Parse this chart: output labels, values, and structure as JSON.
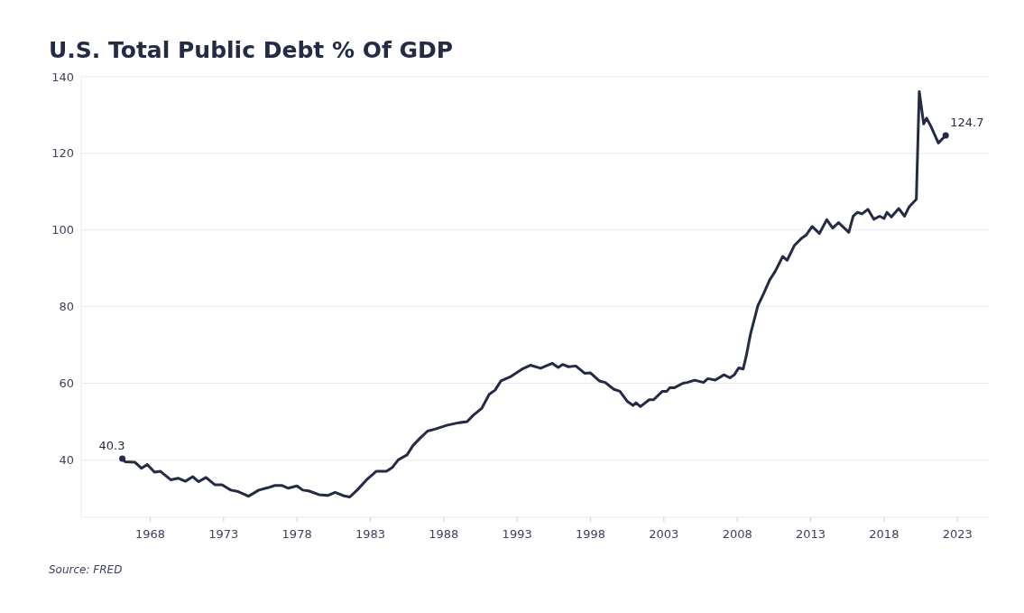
{
  "chart_data": {
    "type": "line",
    "title": "U.S. Total Public Debt % Of GDP",
    "x": [
      1966.1,
      1966.3,
      1966.95,
      1967.4,
      1967.8,
      1968.3,
      1968.7,
      1969.4,
      1969.9,
      1970.4,
      1970.9,
      1971.3,
      1971.8,
      1972.4,
      1972.9,
      1973.5,
      1974.0,
      1974.7,
      1975.4,
      1976.0,
      1976.5,
      1977.0,
      1977.4,
      1978.0,
      1978.4,
      1978.8,
      1979.5,
      1980.1,
      1980.6,
      1981.2,
      1981.6,
      1982.1,
      1982.8,
      1983.4,
      1984.1,
      1984.5,
      1984.9,
      1985.5,
      1985.9,
      1986.4,
      1986.9,
      1987.4,
      1988.2,
      1988.9,
      1989.6,
      1990.0,
      1990.6,
      1991.1,
      1991.5,
      1991.9,
      1992.6,
      1993.4,
      1993.9,
      1994.6,
      1995.4,
      1995.8,
      1996.1,
      1996.5,
      1997.0,
      1997.6,
      1998.0,
      1998.6,
      1999.0,
      1999.6,
      2000.0,
      2000.5,
      2000.9,
      2001.1,
      2001.4,
      2002.0,
      2002.3,
      2002.9,
      2003.2,
      2003.4,
      2003.7,
      2004.3,
      2004.6,
      2005.1,
      2005.7,
      2006.0,
      2006.5,
      2007.1,
      2007.5,
      2007.8,
      2008.1,
      2008.4,
      2008.6,
      2008.9,
      2009.4,
      2009.8,
      2010.2,
      2010.6,
      2011.1,
      2011.4,
      2011.9,
      2012.4,
      2012.7,
      2013.1,
      2013.6,
      2014.1,
      2014.5,
      2014.9,
      2015.6,
      2015.9,
      2016.2,
      2016.5,
      2016.9,
      2017.3,
      2017.7,
      2018.0,
      2018.2,
      2018.5,
      2019.0,
      2019.4,
      2019.7,
      2020.2,
      2020.4,
      2020.7,
      2020.9,
      2021.2,
      2021.7,
      2022.2
    ],
    "series": [
      {
        "color": "#232b45",
        "values": [
          40.3,
          39.5,
          39.4,
          37.8,
          38.8,
          36.8,
          37.0,
          34.8,
          35.2,
          34.4,
          35.6,
          34.3,
          35.4,
          33.5,
          33.5,
          32.1,
          31.7,
          30.5,
          32.1,
          32.7,
          33.3,
          33.3,
          32.6,
          33.2,
          32.1,
          31.9,
          30.9,
          30.7,
          31.5,
          30.6,
          30.3,
          32.1,
          35.0,
          37.0,
          37.0,
          38.0,
          40.0,
          41.3,
          43.7,
          45.7,
          47.5,
          48.0,
          49.0,
          49.6,
          50.0,
          51.6,
          53.5,
          57.1,
          58.2,
          60.6,
          61.8,
          63.8,
          64.7,
          63.9,
          65.2,
          64.1,
          64.9,
          64.3,
          64.5,
          62.6,
          62.7,
          60.6,
          60.2,
          58.4,
          57.9,
          55.3,
          54.2,
          54.9,
          53.9,
          55.7,
          55.7,
          57.9,
          57.9,
          58.8,
          58.8,
          60.0,
          60.2,
          60.8,
          60.2,
          61.2,
          60.8,
          62.2,
          61.4,
          62.2,
          64.0,
          63.7,
          66.9,
          72.8,
          80.2,
          83.4,
          86.9,
          89.3,
          93.1,
          92.1,
          96.0,
          97.9,
          98.7,
          100.9,
          99.1,
          102.7,
          100.5,
          101.9,
          99.4,
          103.6,
          104.6,
          104.2,
          105.4,
          102.8,
          103.6,
          103.0,
          104.6,
          103.4,
          105.6,
          103.6,
          106.0,
          108.0,
          136.1,
          127.7,
          129.2,
          127.0,
          122.7,
          124.7
        ]
      }
    ],
    "xlim": [
      1963.3,
      2025.2
    ],
    "xticks": [
      1968,
      1973,
      1978,
      1983,
      1988,
      1993,
      1998,
      2003,
      2008,
      2013,
      2018,
      2023
    ],
    "ylim": [
      25,
      140
    ],
    "yticks": [
      40,
      60,
      80,
      100,
      120,
      140
    ],
    "grid": "y",
    "line_style": "solid",
    "marker": "none",
    "annotations": [
      {
        "text": "40.3",
        "x": 1966.1,
        "y": 40.3
      },
      {
        "text": "124.7",
        "x": 2022.2,
        "y": 124.7
      },
      "Source: FRED"
    ]
  }
}
